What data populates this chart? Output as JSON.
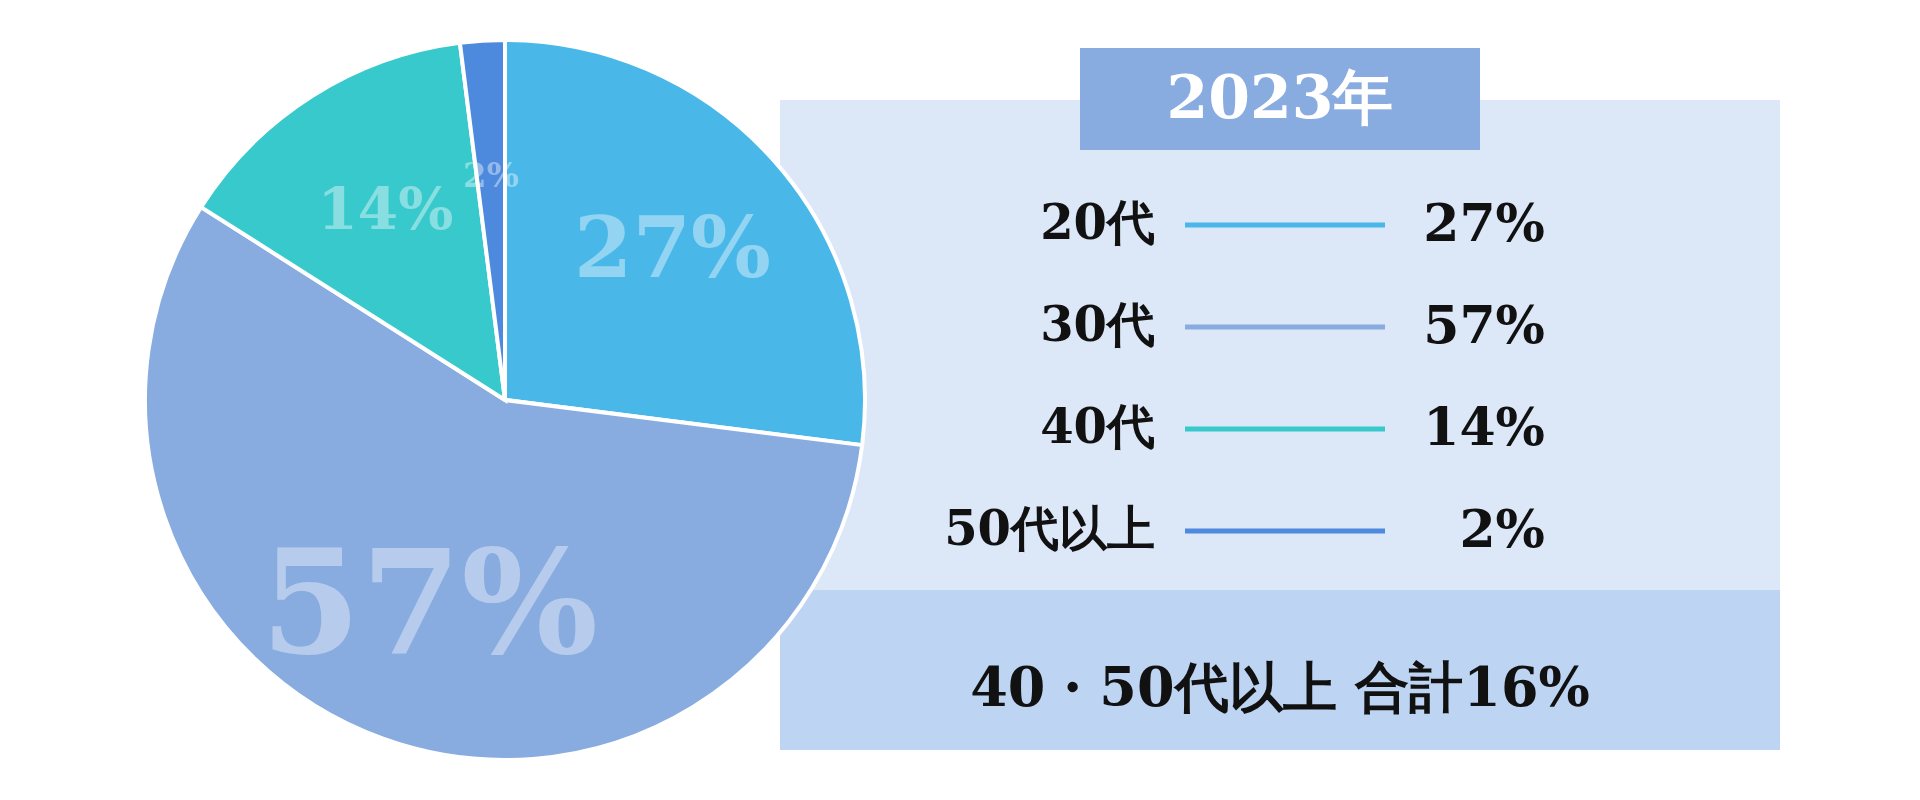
{
  "chart_data": {
    "type": "pie",
    "title": "2023年",
    "categories": [
      "20代",
      "30代",
      "40代",
      "50代以上"
    ],
    "values": [
      27,
      57,
      14,
      2
    ],
    "colors": [
      "#49b8e8",
      "#88abe0",
      "#38c9cc",
      "#4d8ade"
    ],
    "value_labels": [
      "27%",
      "57%",
      "14%",
      "2%"
    ],
    "annotations": [
      "40・50代以上 合計16%"
    ],
    "legend": "right"
  }
}
